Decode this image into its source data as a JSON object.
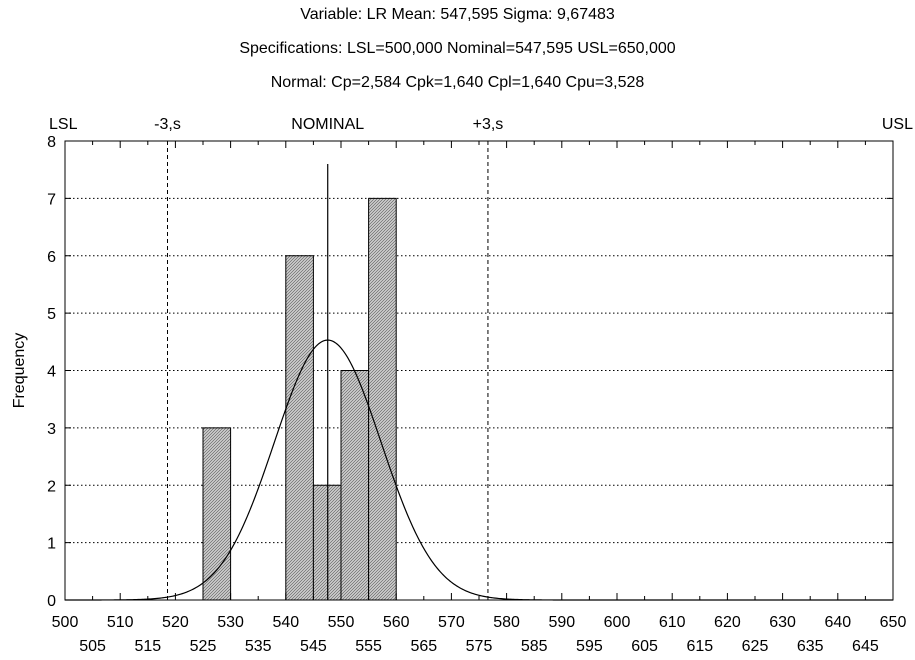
{
  "chart_data": {
    "type": "bar",
    "title_lines": [
      "Variable: LR Mean: 547,595 Sigma: 9,67483",
      "Specifications: LSL=500,000 Nominal=547,595 USL=650,000",
      "Normal: Cp=2,584 Cpk=1,640 Cpl=1,640 Cpu=3,528"
    ],
    "xlabel": "",
    "ylabel": "Frequency",
    "xlim": [
      500,
      650
    ],
    "ylim": [
      0,
      8
    ],
    "grid": true,
    "xticks_top": [
      "500",
      "510",
      "520",
      "530",
      "540",
      "550",
      "560",
      "570",
      "580",
      "590",
      "600",
      "610",
      "620",
      "630",
      "640",
      "650"
    ],
    "xticks_bottom": [
      "505",
      "515",
      "525",
      "535",
      "545",
      "555",
      "565",
      "575",
      "585",
      "595",
      "605",
      "615",
      "625",
      "635",
      "645"
    ],
    "yticks": [
      "0",
      "1",
      "2",
      "3",
      "4",
      "5",
      "6",
      "7",
      "8"
    ],
    "bins": [
      {
        "x0": 525,
        "x1": 530,
        "value": 3
      },
      {
        "x0": 540,
        "x1": 545,
        "value": 6
      },
      {
        "x0": 545,
        "x1": 550,
        "value": 2
      },
      {
        "x0": 550,
        "x1": 555,
        "value": 4
      },
      {
        "x0": 555,
        "x1": 560,
        "value": 7
      }
    ],
    "normal_curve": {
      "mean": 547.595,
      "sigma": 9.67483,
      "peak_frequency": 4.53
    },
    "reference_lines": [
      {
        "label": "LSL",
        "x": 500
      },
      {
        "label": "-3,s",
        "x": 518.57
      },
      {
        "label": "NOMINAL",
        "x": 547.595
      },
      {
        "label": "+3,s",
        "x": 576.62
      },
      {
        "label": "USL",
        "x": 650
      }
    ]
  }
}
